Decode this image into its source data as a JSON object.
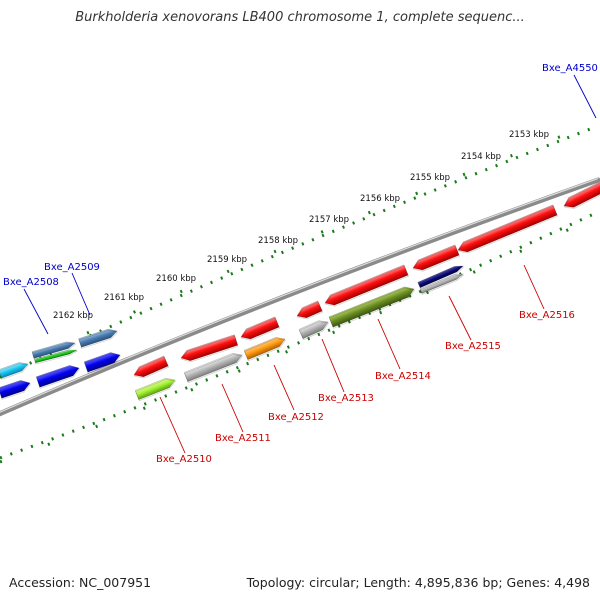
{
  "title": "Burkholderia xenovorans LB400 chromosome 1, complete sequenc...",
  "footer": {
    "accession": "Accession: NC_007951",
    "topology": "Topology: circular; Length: 4,895,836 bp; Genes: 4,498"
  },
  "colors": {
    "backbone": "#8a8a8a",
    "ruler": "#1c7a1c",
    "label_blue": "#0000cc",
    "label_red": "#cc0000"
  },
  "ruler_labels": [
    "2153 kbp",
    "2154 kbp",
    "2155 kbp",
    "2156 kbp",
    "2157 kbp",
    "2158 kbp",
    "2159 kbp",
    "2160 kbp",
    "2161 kbp",
    "2162 kbp"
  ],
  "gene_labels": [
    {
      "id": "outer",
      "text": "Bxe_A4550",
      "color": "blue"
    },
    {
      "id": "a2509",
      "text": "Bxe_A2509",
      "color": "blue"
    },
    {
      "id": "a2508",
      "text": "Bxe_A2508",
      "color": "blue"
    },
    {
      "id": "a2510",
      "text": "Bxe_A2510",
      "color": "red"
    },
    {
      "id": "a2511",
      "text": "Bxe_A2511",
      "color": "red"
    },
    {
      "id": "a2512",
      "text": "Bxe_A2512",
      "color": "red"
    },
    {
      "id": "a2513",
      "text": "Bxe_A2513",
      "color": "red"
    },
    {
      "id": "a2514",
      "text": "Bxe_A2514",
      "color": "red"
    },
    {
      "id": "a2515",
      "text": "Bxe_A2515",
      "color": "red"
    },
    {
      "id": "a2516",
      "text": "Bxe_A2516",
      "color": "red"
    }
  ]
}
